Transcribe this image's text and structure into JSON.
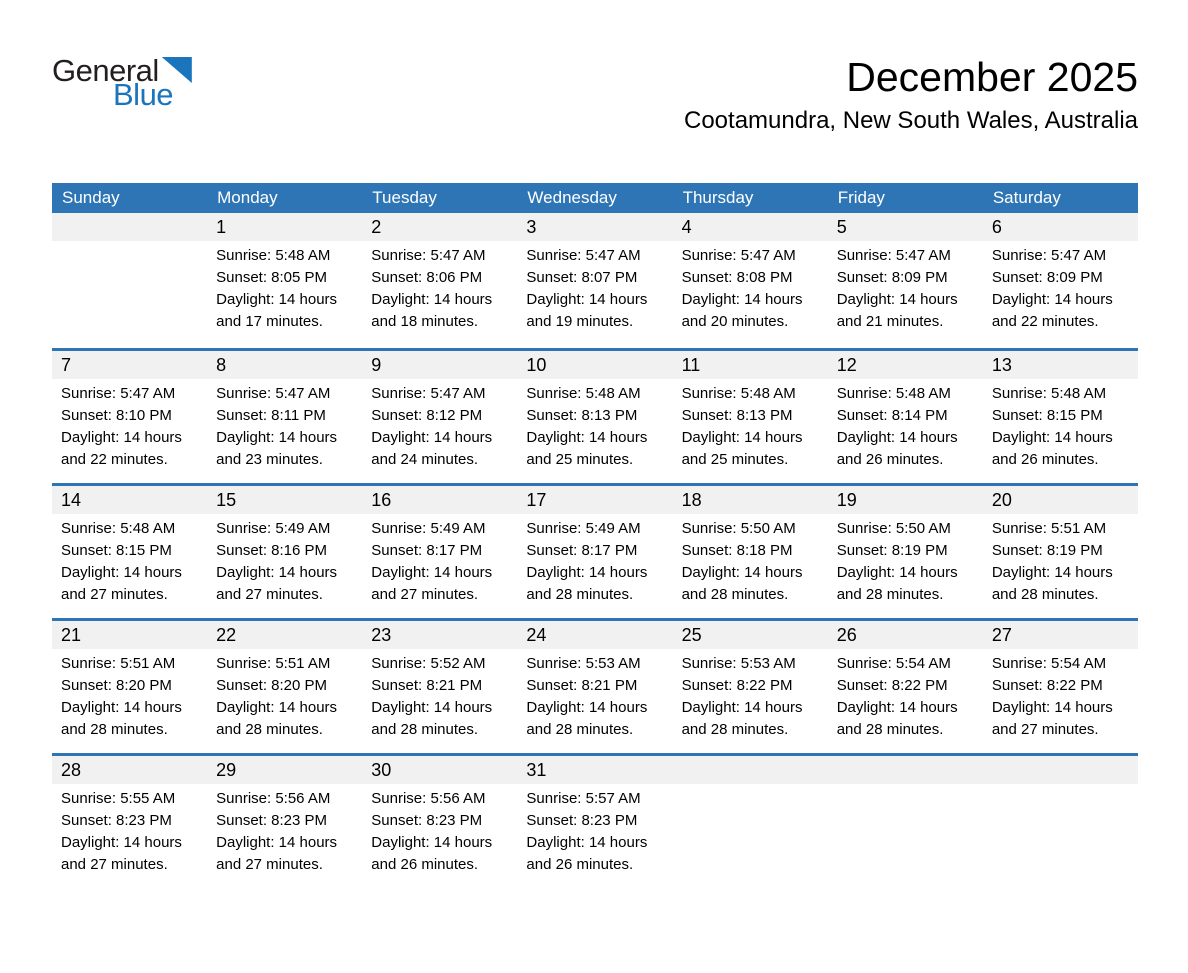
{
  "logo": {
    "text_black": "General",
    "text_blue": "Blue"
  },
  "header": {
    "month_title": "December 2025",
    "location": "Cootamundra, New South Wales, Australia"
  },
  "colors": {
    "header_blue": "#2e75b5",
    "logo_blue": "#1b75bc",
    "day_band_gray": "#f1f1f1"
  },
  "calendar": {
    "weekdays": [
      "Sunday",
      "Monday",
      "Tuesday",
      "Wednesday",
      "Thursday",
      "Friday",
      "Saturday"
    ],
    "weeks": [
      [
        null,
        {
          "day": "1",
          "sunrise": "Sunrise: 5:48 AM",
          "sunset": "Sunset: 8:05 PM",
          "daylight1": "Daylight: 14 hours",
          "daylight2": "and 17 minutes."
        },
        {
          "day": "2",
          "sunrise": "Sunrise: 5:47 AM",
          "sunset": "Sunset: 8:06 PM",
          "daylight1": "Daylight: 14 hours",
          "daylight2": "and 18 minutes."
        },
        {
          "day": "3",
          "sunrise": "Sunrise: 5:47 AM",
          "sunset": "Sunset: 8:07 PM",
          "daylight1": "Daylight: 14 hours",
          "daylight2": "and 19 minutes."
        },
        {
          "day": "4",
          "sunrise": "Sunrise: 5:47 AM",
          "sunset": "Sunset: 8:08 PM",
          "daylight1": "Daylight: 14 hours",
          "daylight2": "and 20 minutes."
        },
        {
          "day": "5",
          "sunrise": "Sunrise: 5:47 AM",
          "sunset": "Sunset: 8:09 PM",
          "daylight1": "Daylight: 14 hours",
          "daylight2": "and 21 minutes."
        },
        {
          "day": "6",
          "sunrise": "Sunrise: 5:47 AM",
          "sunset": "Sunset: 8:09 PM",
          "daylight1": "Daylight: 14 hours",
          "daylight2": "and 22 minutes."
        }
      ],
      [
        {
          "day": "7",
          "sunrise": "Sunrise: 5:47 AM",
          "sunset": "Sunset: 8:10 PM",
          "daylight1": "Daylight: 14 hours",
          "daylight2": "and 22 minutes."
        },
        {
          "day": "8",
          "sunrise": "Sunrise: 5:47 AM",
          "sunset": "Sunset: 8:11 PM",
          "daylight1": "Daylight: 14 hours",
          "daylight2": "and 23 minutes."
        },
        {
          "day": "9",
          "sunrise": "Sunrise: 5:47 AM",
          "sunset": "Sunset: 8:12 PM",
          "daylight1": "Daylight: 14 hours",
          "daylight2": "and 24 minutes."
        },
        {
          "day": "10",
          "sunrise": "Sunrise: 5:48 AM",
          "sunset": "Sunset: 8:13 PM",
          "daylight1": "Daylight: 14 hours",
          "daylight2": "and 25 minutes."
        },
        {
          "day": "11",
          "sunrise": "Sunrise: 5:48 AM",
          "sunset": "Sunset: 8:13 PM",
          "daylight1": "Daylight: 14 hours",
          "daylight2": "and 25 minutes."
        },
        {
          "day": "12",
          "sunrise": "Sunrise: 5:48 AM",
          "sunset": "Sunset: 8:14 PM",
          "daylight1": "Daylight: 14 hours",
          "daylight2": "and 26 minutes."
        },
        {
          "day": "13",
          "sunrise": "Sunrise: 5:48 AM",
          "sunset": "Sunset: 8:15 PM",
          "daylight1": "Daylight: 14 hours",
          "daylight2": "and 26 minutes."
        }
      ],
      [
        {
          "day": "14",
          "sunrise": "Sunrise: 5:48 AM",
          "sunset": "Sunset: 8:15 PM",
          "daylight1": "Daylight: 14 hours",
          "daylight2": "and 27 minutes."
        },
        {
          "day": "15",
          "sunrise": "Sunrise: 5:49 AM",
          "sunset": "Sunset: 8:16 PM",
          "daylight1": "Daylight: 14 hours",
          "daylight2": "and 27 minutes."
        },
        {
          "day": "16",
          "sunrise": "Sunrise: 5:49 AM",
          "sunset": "Sunset: 8:17 PM",
          "daylight1": "Daylight: 14 hours",
          "daylight2": "and 27 minutes."
        },
        {
          "day": "17",
          "sunrise": "Sunrise: 5:49 AM",
          "sunset": "Sunset: 8:17 PM",
          "daylight1": "Daylight: 14 hours",
          "daylight2": "and 28 minutes."
        },
        {
          "day": "18",
          "sunrise": "Sunrise: 5:50 AM",
          "sunset": "Sunset: 8:18 PM",
          "daylight1": "Daylight: 14 hours",
          "daylight2": "and 28 minutes."
        },
        {
          "day": "19",
          "sunrise": "Sunrise: 5:50 AM",
          "sunset": "Sunset: 8:19 PM",
          "daylight1": "Daylight: 14 hours",
          "daylight2": "and 28 minutes."
        },
        {
          "day": "20",
          "sunrise": "Sunrise: 5:51 AM",
          "sunset": "Sunset: 8:19 PM",
          "daylight1": "Daylight: 14 hours",
          "daylight2": "and 28 minutes."
        }
      ],
      [
        {
          "day": "21",
          "sunrise": "Sunrise: 5:51 AM",
          "sunset": "Sunset: 8:20 PM",
          "daylight1": "Daylight: 14 hours",
          "daylight2": "and 28 minutes."
        },
        {
          "day": "22",
          "sunrise": "Sunrise: 5:51 AM",
          "sunset": "Sunset: 8:20 PM",
          "daylight1": "Daylight: 14 hours",
          "daylight2": "and 28 minutes."
        },
        {
          "day": "23",
          "sunrise": "Sunrise: 5:52 AM",
          "sunset": "Sunset: 8:21 PM",
          "daylight1": "Daylight: 14 hours",
          "daylight2": "and 28 minutes."
        },
        {
          "day": "24",
          "sunrise": "Sunrise: 5:53 AM",
          "sunset": "Sunset: 8:21 PM",
          "daylight1": "Daylight: 14 hours",
          "daylight2": "and 28 minutes."
        },
        {
          "day": "25",
          "sunrise": "Sunrise: 5:53 AM",
          "sunset": "Sunset: 8:22 PM",
          "daylight1": "Daylight: 14 hours",
          "daylight2": "and 28 minutes."
        },
        {
          "day": "26",
          "sunrise": "Sunrise: 5:54 AM",
          "sunset": "Sunset: 8:22 PM",
          "daylight1": "Daylight: 14 hours",
          "daylight2": "and 28 minutes."
        },
        {
          "day": "27",
          "sunrise": "Sunrise: 5:54 AM",
          "sunset": "Sunset: 8:22 PM",
          "daylight1": "Daylight: 14 hours",
          "daylight2": "and 27 minutes."
        }
      ],
      [
        {
          "day": "28",
          "sunrise": "Sunrise: 5:55 AM",
          "sunset": "Sunset: 8:23 PM",
          "daylight1": "Daylight: 14 hours",
          "daylight2": "and 27 minutes."
        },
        {
          "day": "29",
          "sunrise": "Sunrise: 5:56 AM",
          "sunset": "Sunset: 8:23 PM",
          "daylight1": "Daylight: 14 hours",
          "daylight2": "and 27 minutes."
        },
        {
          "day": "30",
          "sunrise": "Sunrise: 5:56 AM",
          "sunset": "Sunset: 8:23 PM",
          "daylight1": "Daylight: 14 hours",
          "daylight2": "and 26 minutes."
        },
        {
          "day": "31",
          "sunrise": "Sunrise: 5:57 AM",
          "sunset": "Sunset: 8:23 PM",
          "daylight1": "Daylight: 14 hours",
          "daylight2": "and 26 minutes."
        },
        null,
        null,
        null
      ]
    ]
  }
}
